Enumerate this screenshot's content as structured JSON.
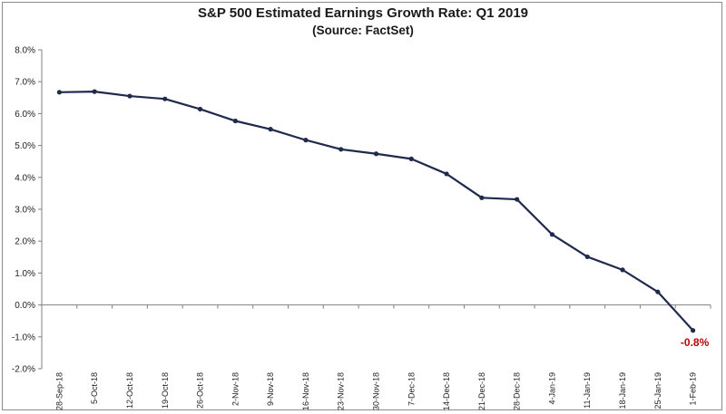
{
  "chart_data": {
    "type": "line",
    "title": "S&P 500 Estimated Earnings Growth Rate: Q1 2019",
    "subtitle": "(Source: FactSet)",
    "xlabel": "",
    "ylabel": "",
    "ylim": [
      -2.0,
      8.0
    ],
    "y_ticks": [
      "-2.0%",
      "-1.0%",
      "0.0%",
      "1.0%",
      "2.0%",
      "3.0%",
      "4.0%",
      "5.0%",
      "6.0%",
      "7.0%",
      "8.0%"
    ],
    "categories": [
      "28-Sep-18",
      "5-Oct-18",
      "12-Oct-18",
      "19-Oct-18",
      "26-Oct-18",
      "2-Nov-18",
      "9-Nov-18",
      "16-Nov-18",
      "23-Nov-18",
      "30-Nov-18",
      "7-Dec-18",
      "14-Dec-18",
      "21-Dec-18",
      "28-Dec-18",
      "4-Jan-19",
      "11-Jan-19",
      "18-Jan-19",
      "25-Jan-19",
      "1-Feb-19"
    ],
    "series": [
      {
        "values": [
          6.67,
          6.69,
          6.55,
          6.46,
          6.14,
          5.77,
          5.51,
          5.17,
          4.88,
          4.74,
          4.58,
          4.11,
          3.36,
          3.31,
          2.21,
          1.51,
          1.1,
          0.41,
          -0.8
        ],
        "color": "#1f2a4d"
      }
    ],
    "grid": false,
    "legend": "none",
    "annotation": {
      "text": "-0.8%",
      "color": "#c00000"
    }
  }
}
